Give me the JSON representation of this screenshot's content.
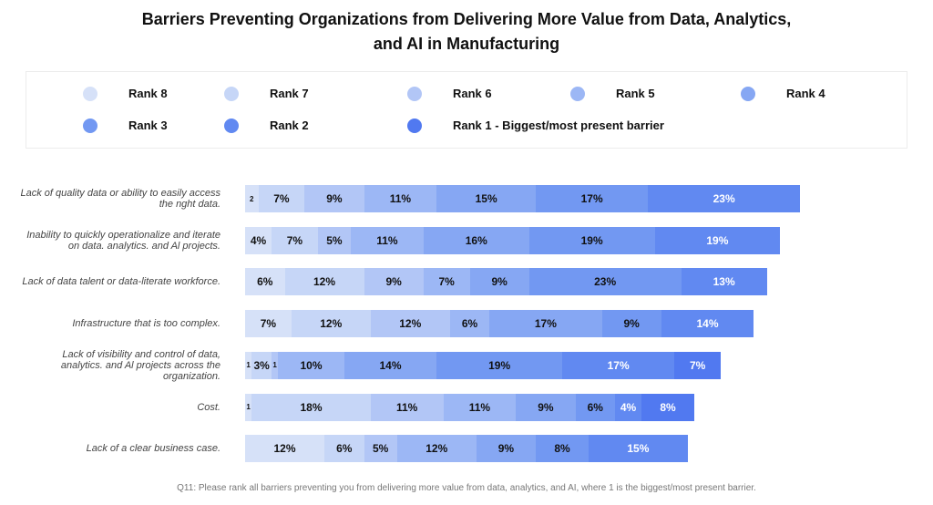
{
  "chart_data": {
    "type": "bar",
    "orientation": "horizontal",
    "stacked": true,
    "title_line1": "Barriers Preventing Organizations from Delivering More Value from Data, Analytics,",
    "title_line2": "and AI in Manufacturing",
    "categories": [
      "Lack of quality data or ability to easily access the nght data.",
      "Inability to quickly operationalize and iterate on data. analytics. and Al projects.",
      "Lack of data talent or data-literate workforce.",
      "Infrastructure that is too complex.",
      "Lack of visibility and control of data, analytics. and Al projects across the organization.",
      "Cost.",
      "Lack of a clear business case."
    ],
    "series": [
      {
        "name": "Rank 8",
        "color": "#d6e1f8",
        "values": [
          2,
          4,
          6,
          7,
          1,
          1,
          12
        ]
      },
      {
        "name": "Rank 7",
        "color": "#c6d6f7",
        "values": [
          7,
          7,
          12,
          12,
          3,
          18,
          6
        ]
      },
      {
        "name": "Rank 6",
        "color": "#b2c6f6",
        "values": [
          9,
          5,
          9,
          12,
          1,
          11,
          5
        ]
      },
      {
        "name": "Rank 5",
        "color": "#9cb7f5",
        "values": [
          11,
          11,
          7,
          6,
          10,
          11,
          12
        ]
      },
      {
        "name": "Rank 4",
        "color": "#86a7f3",
        "values": [
          15,
          16,
          9,
          17,
          14,
          9,
          9
        ]
      },
      {
        "name": "Rank 3",
        "color": "#7298f2",
        "values": [
          17,
          19,
          23,
          9,
          19,
          6,
          8
        ]
      },
      {
        "name": "Rank 2",
        "color": "#6189f1",
        "values": [
          23,
          19,
          13,
          14,
          17,
          4,
          15
        ]
      },
      {
        "name": "Rank 1 - Biggest/most present barrier",
        "color": "#5179f0",
        "values": [
          0,
          0,
          0,
          0,
          7,
          8,
          0
        ]
      }
    ],
    "data_labels": [
      [
        "2",
        "7%",
        "9%",
        "11%",
        "15%",
        "17%",
        "23%",
        ""
      ],
      [
        "4%",
        "7%",
        "5%",
        "11%",
        "16%",
        "19%",
        "19%",
        ""
      ],
      [
        "6%",
        "12%",
        "9%",
        "7%",
        "9%",
        "23%",
        "13%",
        ""
      ],
      [
        "7%",
        "12%",
        "12%",
        "6%",
        "17%",
        "9%",
        "14%",
        ""
      ],
      [
        "1",
        "3%",
        "1",
        "10%",
        "14%",
        "19%",
        "17%",
        "7%"
      ],
      [
        "1",
        "18%",
        "11%",
        "11%",
        "9%",
        "6%",
        "4%",
        "8%"
      ],
      [
        "12%",
        "6%",
        "5%",
        "12%",
        "9%",
        "8%",
        "15%",
        ""
      ]
    ],
    "legend_position": "top",
    "xlim": [
      0,
      100
    ],
    "grid": false,
    "unit": "%",
    "footnote": "Q11: Please rank all barriers preventing you from delivering more value from data, analytics, and AI, where 1 is the biggest/most present barrier."
  },
  "legend_items": [
    "Rank 8",
    "Rank 7",
    "Rank 6",
    "Rank 5",
    "Rank 4",
    "Rank 3",
    "Rank 2",
    "Rank 1 - Biggest/most present barrier"
  ]
}
